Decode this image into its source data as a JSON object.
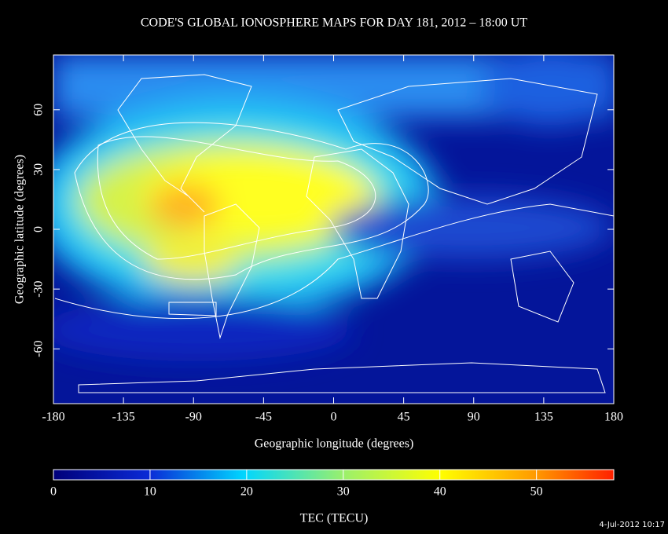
{
  "chart_data": {
    "type": "map",
    "title": "CODE'S GLOBAL IONOSPHERE MAPS FOR DAY 181, 2012 – 18:00 UT",
    "x_label": "Geographic longitude (degrees)",
    "y_label": "Geographic latitude (degrees)",
    "xlim": [
      -180,
      180
    ],
    "ylim": [
      -87.5,
      87.5
    ],
    "xticks": [
      -180,
      -135,
      -90,
      -45,
      0,
      45,
      90,
      135,
      180
    ],
    "yticks": [
      -60,
      -30,
      0,
      30,
      60
    ],
    "colorbar": {
      "label": "TEC (TECU)",
      "lim": [
        0,
        58
      ],
      "ticks": [
        0,
        10,
        20,
        30,
        40,
        50
      ]
    },
    "timestamp": "4-Jul-2012 10:17"
  }
}
